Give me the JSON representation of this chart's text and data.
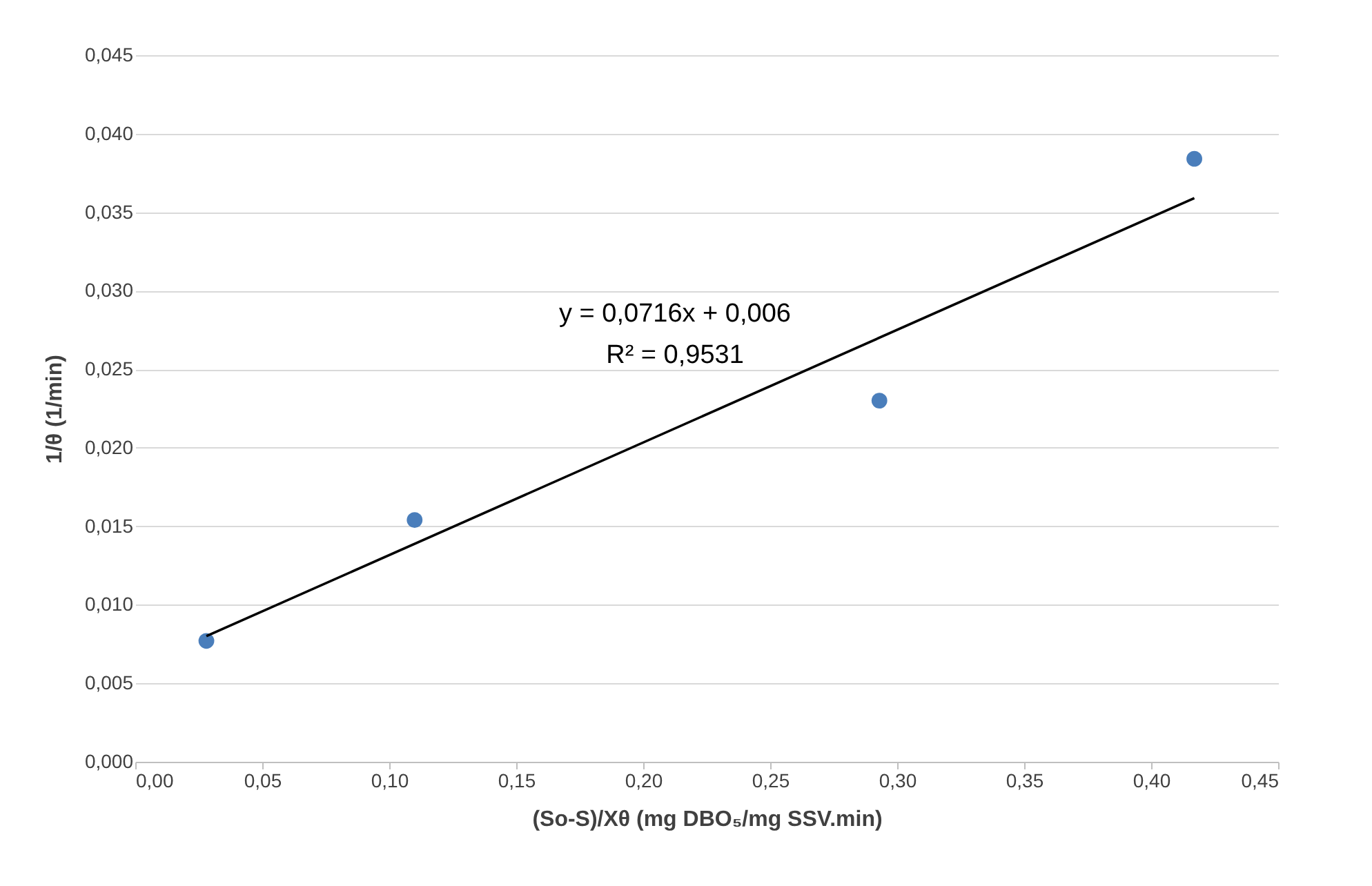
{
  "chart_data": {
    "type": "scatter",
    "xlabel": "(So-S)/Xθ (mg DBO₅/mg SSV.min)",
    "ylabel": "1/θ (1/min)",
    "series": [
      {
        "type": "scatter",
        "color": "#4a7ebb",
        "x": [
          0.028,
          0.11,
          0.293,
          0.417
        ],
        "values": [
          0.0077,
          0.0154,
          0.023,
          0.0384
        ],
        "marker": "circle"
      },
      {
        "type": "line",
        "color": "#000000",
        "x": [
          0.028,
          0.417
        ],
        "values": [
          0.008,
          0.0359
        ],
        "marker": "none",
        "line_style": "solid"
      }
    ],
    "annotations": [
      "y = 0,0716x + 0,006",
      "R² = 0,9531"
    ],
    "xlim": [
      0,
      0.45
    ],
    "ylim": [
      0,
      0.045
    ],
    "xticks": [
      {
        "value": 0,
        "label": "0,00"
      },
      {
        "value": 0.05,
        "label": "0,05"
      },
      {
        "value": 0.1,
        "label": "0,10"
      },
      {
        "value": 0.15,
        "label": "0,15"
      },
      {
        "value": 0.2,
        "label": "0,20"
      },
      {
        "value": 0.25,
        "label": "0,25"
      },
      {
        "value": 0.3,
        "label": "0,30"
      },
      {
        "value": 0.35,
        "label": "0,35"
      },
      {
        "value": 0.4,
        "label": "0,40"
      },
      {
        "value": 0.45,
        "label": "0,45"
      }
    ],
    "yticks": [
      {
        "value": 0,
        "label": "0,000"
      },
      {
        "value": 0.005,
        "label": "0,005"
      },
      {
        "value": 0.01,
        "label": "0,010"
      },
      {
        "value": 0.015,
        "label": "0,015"
      },
      {
        "value": 0.02,
        "label": "0,020"
      },
      {
        "value": 0.025,
        "label": "0,025"
      },
      {
        "value": 0.03,
        "label": "0,030"
      },
      {
        "value": 0.035,
        "label": "0,035"
      },
      {
        "value": 0.04,
        "label": "0,040"
      },
      {
        "value": 0.045,
        "label": "0,045"
      }
    ],
    "grid": "y",
    "legend": false
  }
}
